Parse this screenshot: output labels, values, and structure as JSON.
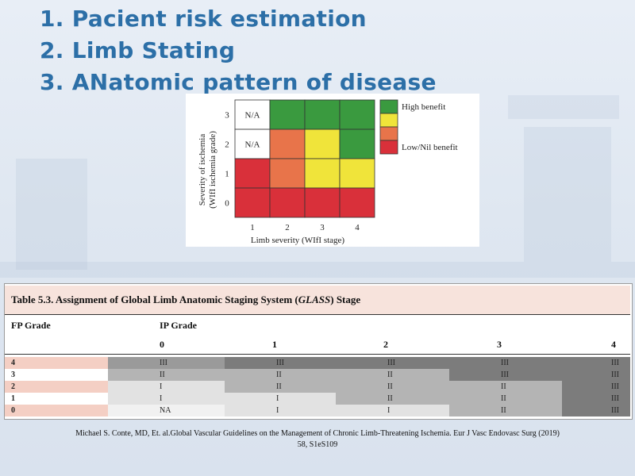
{
  "slide": {
    "items": [
      "1. Pacient risk estimation",
      "2. Limb Stating",
      "3. ANatomic pattern of disease"
    ]
  },
  "matrix": {
    "y_title_line1": "Severity of ischemia",
    "y_title_line2": "(WIfI ischemia grade)",
    "x_title": "Limb severity (WIfI stage)",
    "x_ticks": [
      "1",
      "2",
      "3",
      "4"
    ],
    "y_ticks": [
      "3",
      "2",
      "1",
      "0"
    ],
    "cells": [
      [
        "N/A",
        "green",
        "green",
        "green"
      ],
      [
        "N/A",
        "orange",
        "yellow",
        "green"
      ],
      [
        "red",
        "orange",
        "yellow",
        "yellow"
      ],
      [
        "red",
        "red",
        "red",
        "red"
      ]
    ],
    "colors": {
      "green": "#3a9a3f",
      "yellow": "#f0e43a",
      "orange": "#e8744a",
      "red": "#d9303a",
      "na": "#ffffff"
    },
    "legend": [
      {
        "color": "green",
        "label": "High benefit"
      },
      {
        "color": "yellow",
        "label": ""
      },
      {
        "color": "orange",
        "label": ""
      },
      {
        "color": "red",
        "label": "Low/Nil benefit"
      }
    ]
  },
  "table": {
    "caption_prefix": "Table 5.3. Assignment of Global Limb Anatomic Staging System (",
    "caption_italic": "GLASS",
    "caption_suffix": ") Stage",
    "fp_header": "FP Grade",
    "ip_header": "IP Grade",
    "ip_columns": [
      "0",
      "1",
      "2",
      "3",
      "4"
    ],
    "rows": [
      {
        "fp": "4",
        "cells": [
          "III",
          "III",
          "III",
          "III",
          "III"
        ],
        "shades": [
          3,
          4,
          4,
          4,
          4
        ]
      },
      {
        "fp": "3",
        "cells": [
          "II",
          "II",
          "II",
          "III",
          "III"
        ],
        "shades": [
          2,
          2,
          2,
          4,
          4
        ]
      },
      {
        "fp": "2",
        "cells": [
          "I",
          "II",
          "II",
          "II",
          "III"
        ],
        "shades": [
          1,
          2,
          2,
          2,
          4
        ]
      },
      {
        "fp": "1",
        "cells": [
          "I",
          "I",
          "II",
          "II",
          "III"
        ],
        "shades": [
          1,
          1,
          2,
          2,
          4
        ]
      },
      {
        "fp": "0",
        "cells": [
          "NA",
          "I",
          "I",
          "II",
          "III"
        ],
        "shades": [
          0,
          1,
          1,
          2,
          4
        ]
      }
    ],
    "fp_shade_pink": "#f4cfc4",
    "shade_colors": [
      "#f1f1f1",
      "#e2e2e2",
      "#b4b4b4",
      "#9a9a9a",
      "#7c7c7c"
    ]
  },
  "citation": {
    "line1": "Michael S. Conte, MD, Et. al.Global  Vascular Guidelines  on the Management of Chronic Limb-Threatening  Ischemia. Eur J Vasc Endovasc Surg (2019)",
    "line2": "58, S1eS109"
  }
}
